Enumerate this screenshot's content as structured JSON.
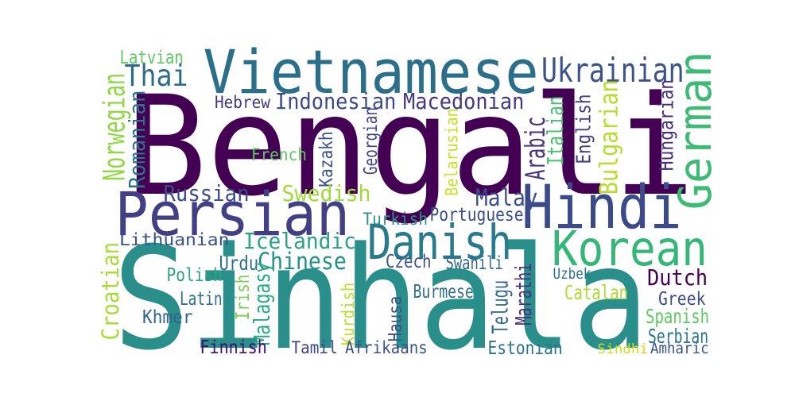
{
  "words": [
    {
      "text": "Bengali",
      "color": "#440154",
      "rotated": false
    },
    {
      "text": "Sinhala",
      "color": "#2a8f8a",
      "rotated": false
    },
    {
      "text": "Vietnamese",
      "color": "#2b6f8b",
      "rotated": false
    },
    {
      "text": "Persian",
      "color": "#433f84",
      "rotated": false
    },
    {
      "text": "Hindi",
      "color": "#3b4b89",
      "rotated": false
    },
    {
      "text": "Korean",
      "color": "#35b779",
      "rotated": false
    },
    {
      "text": "German",
      "color": "#3dbb74",
      "rotated": true
    },
    {
      "text": "Danish",
      "color": "#2a7a8e",
      "rotated": false
    },
    {
      "text": "Ukrainian",
      "color": "#3b528b",
      "rotated": false
    },
    {
      "text": "Thai",
      "color": "#2f6b8e",
      "rotated": false
    },
    {
      "text": "Indonesian",
      "color": "#3f4a8a",
      "rotated": false
    },
    {
      "text": "Macedonian",
      "color": "#443983",
      "rotated": false
    },
    {
      "text": "Hebrew",
      "color": "#453781",
      "rotated": false
    },
    {
      "text": "Latvian",
      "color": "#5ec962",
      "rotated": false
    },
    {
      "text": "Norwegian",
      "color": "#8fd744",
      "rotated": true
    },
    {
      "text": "Romanian",
      "color": "#2c738e",
      "rotated": true
    },
    {
      "text": "Croatian",
      "color": "#a8db34",
      "rotated": true
    },
    {
      "text": "French",
      "color": "#5ec962",
      "rotated": false
    },
    {
      "text": "Kazakh",
      "color": "#3b528b",
      "rotated": true
    },
    {
      "text": "Georgian",
      "color": "#414487",
      "rotated": true
    },
    {
      "text": "Belarusian",
      "color": "#c8e020",
      "rotated": true
    },
    {
      "text": "Arabic",
      "color": "#46327e",
      "rotated": true
    },
    {
      "text": "Italian",
      "color": "#4ac16d",
      "rotated": true
    },
    {
      "text": "English",
      "color": "#433e85",
      "rotated": true
    },
    {
      "text": "Bulgarian",
      "color": "#b5de2b",
      "rotated": true
    },
    {
      "text": "Hungarian",
      "color": "#472d7b",
      "rotated": true
    },
    {
      "text": "Russian",
      "color": "#3e4c8a",
      "rotated": false
    },
    {
      "text": "Swedish",
      "color": "#a0da39",
      "rotated": false
    },
    {
      "text": "Malay",
      "color": "#3d4d8a",
      "rotated": false
    },
    {
      "text": "Turkish",
      "color": "#2a9187",
      "rotated": false
    },
    {
      "text": "Portuguese",
      "color": "#3d4e8a",
      "rotated": false
    },
    {
      "text": "Lithuanian",
      "color": "#3b518b",
      "rotated": false
    },
    {
      "text": "Icelandic",
      "color": "#2ba184",
      "rotated": false
    },
    {
      "text": "Chinese",
      "color": "#21918c",
      "rotated": false
    },
    {
      "text": "Urdu",
      "color": "#2c738e",
      "rotated": false
    },
    {
      "text": "Czech",
      "color": "#3b528b",
      "rotated": false
    },
    {
      "text": "Swahili",
      "color": "#31688e",
      "rotated": false
    },
    {
      "text": "Uzbek",
      "color": "#2b748e",
      "rotated": false
    },
    {
      "text": "Dutch",
      "color": "#440154",
      "rotated": false
    },
    {
      "text": "Polish",
      "color": "#2ea37f",
      "rotated": false
    },
    {
      "text": "Irish",
      "color": "#7ad151",
      "rotated": true
    },
    {
      "text": "Malagasy",
      "color": "#27ad81",
      "rotated": true
    },
    {
      "text": "Latin",
      "color": "#2c728e",
      "rotated": false
    },
    {
      "text": "Kurdish",
      "color": "#bddf26",
      "rotated": true
    },
    {
      "text": "Hausa",
      "color": "#3b518b",
      "rotated": true
    },
    {
      "text": "Burmese",
      "color": "#2d708e",
      "rotated": false
    },
    {
      "text": "Telugu",
      "color": "#31688e",
      "rotated": true
    },
    {
      "text": "Marathi",
      "color": "#46327e",
      "rotated": true
    },
    {
      "text": "Catalan",
      "color": "#addc30",
      "rotated": false
    },
    {
      "text": "Greek",
      "color": "#3e4a89",
      "rotated": false
    },
    {
      "text": "Khmer",
      "color": "#33638d",
      "rotated": false
    },
    {
      "text": "Spanish",
      "color": "#5ec962",
      "rotated": false
    },
    {
      "text": "Serbian",
      "color": "#2b748e",
      "rotated": false
    },
    {
      "text": "Finnish",
      "color": "#3f0f72",
      "rotated": false
    },
    {
      "text": "Tamil",
      "color": "#414487",
      "rotated": false
    },
    {
      "text": "Afrikaans",
      "color": "#3b528b",
      "rotated": false
    },
    {
      "text": "Estonian",
      "color": "#2c738e",
      "rotated": false
    },
    {
      "text": "Sindhi",
      "color": "#d0e11c",
      "rotated": false
    },
    {
      "text": "Amharic",
      "color": "#3b528b",
      "rotated": false
    }
  ]
}
